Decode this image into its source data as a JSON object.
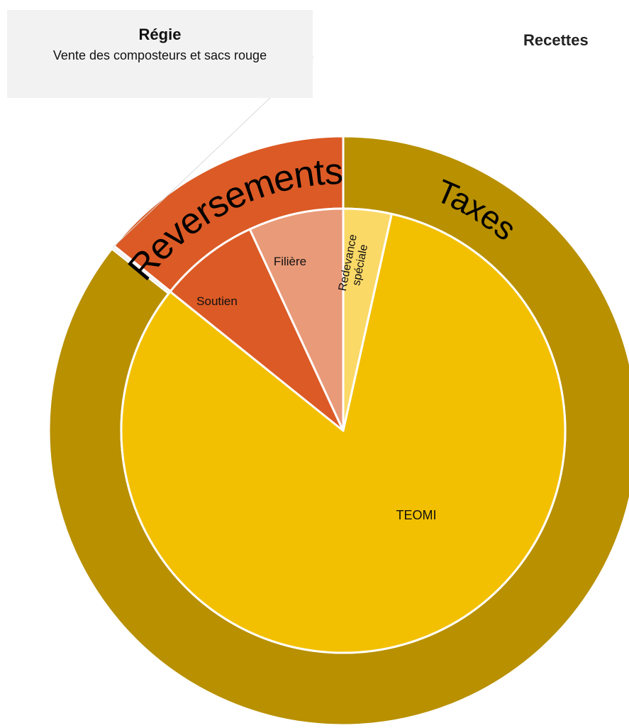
{
  "title": "Recettes",
  "callout": {
    "title": "Régie",
    "description": "Vente des composteurs et sacs rouge"
  },
  "chart_data": {
    "type": "sunburst",
    "title": "Recettes",
    "outer_ring": [
      {
        "label": "Reversements",
        "value": 14.2,
        "color": "#dc5a25"
      },
      {
        "label": "Taxes",
        "value": 85.6,
        "color": "#b89000"
      },
      {
        "label": "Régie",
        "value": 0.2,
        "color": "#f2f2f2"
      }
    ],
    "inner_ring": [
      {
        "label": "Redevance spéciale",
        "parent": "Taxes",
        "value": 3.5,
        "color": "#fbd967"
      },
      {
        "label": "TEOMI",
        "parent": "Taxes",
        "value": 82.1,
        "color": "#f2c000"
      },
      {
        "label": "Soutien",
        "parent": "Reversements",
        "value": 7.3,
        "color": "#dc5a25"
      },
      {
        "label": "Filière",
        "parent": "Reversements",
        "value": 6.9,
        "color": "#e99a78"
      }
    ]
  }
}
